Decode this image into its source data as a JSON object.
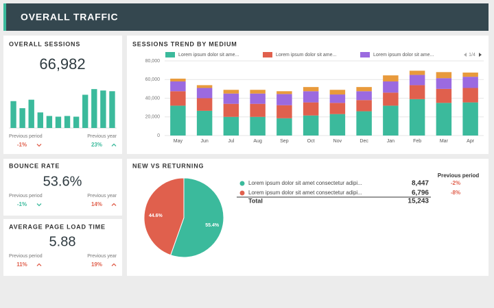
{
  "header": {
    "title": "OVERALL TRAFFIC"
  },
  "sessions": {
    "title": "OVERALL SESSIONS",
    "value": "66,982",
    "comparisons": [
      {
        "label": "Previous period",
        "change": "-1%",
        "direction": "down",
        "color": "#e0604d"
      },
      {
        "label": "Previous year",
        "change": "23%",
        "direction": "up",
        "color": "#3bba9c"
      }
    ]
  },
  "bounce": {
    "title": "BOUNCE RATE",
    "value": "53.6%",
    "comparisons": [
      {
        "label": "Previous period",
        "change": "-1%",
        "direction": "down",
        "color": "#3bba9c"
      },
      {
        "label": "Previous year",
        "change": "14%",
        "direction": "up",
        "color": "#e0604d"
      }
    ]
  },
  "load_time": {
    "title": "AVERAGE PAGE LOAD TIME",
    "value": "5.88",
    "comparisons": [
      {
        "label": "Previous period",
        "change": "11%",
        "direction": "up",
        "color": "#e0604d"
      },
      {
        "label": "Previous year",
        "change": "19%",
        "direction": "up",
        "color": "#e0604d"
      }
    ]
  },
  "trend": {
    "title": "SESSIONS TREND BY MEDIUM",
    "pager": "1/4"
  },
  "returning": {
    "title": "NEW VS RETURNING",
    "table": {
      "header": "Previous period",
      "rows": [
        {
          "label": "Lorem ipsum dolor sit amet consectetur adipi...",
          "value": "8,447",
          "change": "-2%",
          "color": "#3bba9c"
        },
        {
          "label": "Lorem ipsum dolor sit amet consectetur adipi...",
          "value": "6,796",
          "change": "-8%",
          "color": "#e0604d"
        }
      ],
      "total": {
        "label": "Total",
        "value": "15,243"
      }
    }
  },
  "chart_data": [
    {
      "type": "bar",
      "values": [
        38,
        28,
        40,
        22,
        17,
        16,
        17,
        16,
        47,
        55,
        53,
        52
      ],
      "color": "#3bba9c",
      "ylim": [
        0,
        60
      ]
    },
    {
      "type": "stacked_bar",
      "categories": [
        "May",
        "Jun",
        "Jul",
        "Aug",
        "Sep",
        "Oct",
        "Nov",
        "Dec",
        "Jan",
        "Feb",
        "Mar",
        "Apr"
      ],
      "series": [
        {
          "name": "Lorem ipsum dolor sit ame...",
          "color": "#3bba9c",
          "values": [
            32000,
            26500,
            20000,
            20000,
            18500,
            21500,
            23000,
            26000,
            32000,
            39000,
            35000,
            35500
          ]
        },
        {
          "name": "Lorem ipsum dolor sit ame...",
          "color": "#e0604d",
          "values": [
            15500,
            13500,
            14000,
            14000,
            14000,
            14000,
            12000,
            12000,
            14000,
            15000,
            15000,
            15500
          ]
        },
        {
          "name": "Lorem ipsum dolor sit ame...",
          "color": "#9b6ae0",
          "values": [
            10500,
            11000,
            11000,
            11000,
            12000,
            12000,
            9000,
            9500,
            12000,
            11000,
            11500,
            12000
          ]
        },
        {
          "color": "#e89a3c",
          "values": [
            3000,
            3000,
            4000,
            4000,
            3000,
            4500,
            5000,
            4500,
            6500,
            4500,
            6500,
            4500
          ]
        }
      ],
      "ylim": [
        0,
        80000
      ],
      "yticks": [
        0,
        {
          "value": 20000,
          "label": "20,000"
        },
        {
          "value": 40000,
          "label": "40,000"
        },
        {
          "value": 60000,
          "label": "60,000"
        },
        {
          "value": 80000,
          "label": "80,000"
        }
      ],
      "grid": true
    },
    {
      "type": "pie",
      "values": [
        55.4,
        44.6
      ],
      "value_labels": [
        "55.4%",
        "44.6%"
      ],
      "colors": [
        "#3bba9c",
        "#e0604d"
      ]
    }
  ]
}
